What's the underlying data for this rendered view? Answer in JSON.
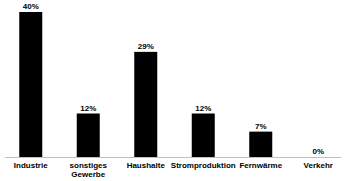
{
  "chart_data": {
    "type": "bar",
    "categories": [
      "Industrie",
      "sonstiges Gewerbe",
      "Haushalte",
      "Stromproduktion",
      "Fernwärme",
      "Verkehr"
    ],
    "values": [
      40,
      12,
      29,
      12,
      7,
      0
    ],
    "value_labels": [
      "40%",
      "12%",
      "29%",
      "12%",
      "7%",
      "0%"
    ],
    "color": "#000000",
    "ylim": [
      0,
      40
    ],
    "data_labels": true,
    "tick_labels": "x",
    "grid": false
  }
}
